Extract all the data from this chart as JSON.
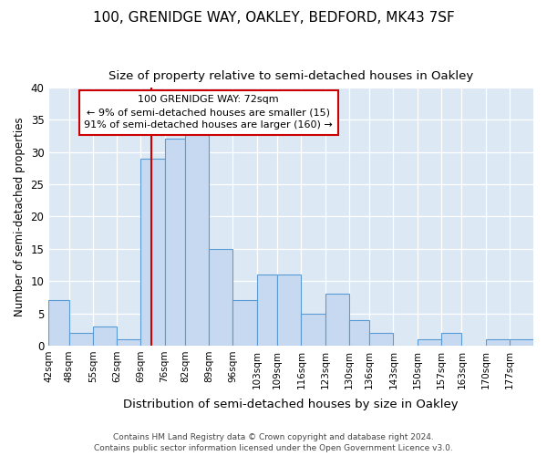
{
  "title": "100, GRENIDGE WAY, OAKLEY, BEDFORD, MK43 7SF",
  "subtitle": "Size of property relative to semi-detached houses in Oakley",
  "xlabel": "Distribution of semi-detached houses by size in Oakley",
  "ylabel": "Number of semi-detached properties",
  "footnote1": "Contains HM Land Registry data © Crown copyright and database right 2024.",
  "footnote2": "Contains public sector information licensed under the Open Government Licence v3.0.",
  "annotation_line1": "100 GRENIDGE WAY: 72sqm",
  "annotation_line2": "← 9% of semi-detached houses are smaller (15)",
  "annotation_line3": "91% of semi-detached houses are larger (160) →",
  "property_size": 72,
  "bin_starts": [
    42,
    48,
    55,
    62,
    69,
    76,
    82,
    89,
    96,
    103,
    109,
    116,
    123,
    130,
    136,
    143,
    150,
    157,
    163,
    170,
    177
  ],
  "bin_widths_val": [
    6,
    7,
    7,
    7,
    7,
    6,
    7,
    7,
    7,
    6,
    7,
    7,
    7,
    6,
    7,
    7,
    7,
    6,
    7,
    7,
    7
  ],
  "bar_heights": [
    7,
    2,
    3,
    1,
    29,
    32,
    33,
    15,
    7,
    11,
    11,
    5,
    8,
    4,
    2,
    0,
    1,
    2,
    0,
    1,
    1
  ],
  "bar_color": "#c6d9f0",
  "bar_edge_color": "#5b9bd5",
  "vline_color": "#cc0000",
  "annotation_box_edge_color": "#cc0000",
  "fig_bg_color": "#ffffff",
  "plot_bg_color": "#dce9f5",
  "grid_color": "#ffffff",
  "ylim": [
    0,
    40
  ],
  "yticks": [
    0,
    5,
    10,
    15,
    20,
    25,
    30,
    35,
    40
  ],
  "tick_labels": [
    "42sqm",
    "48sqm",
    "55sqm",
    "62sqm",
    "69sqm",
    "76sqm",
    "82sqm",
    "89sqm",
    "96sqm",
    "103sqm",
    "109sqm",
    "116sqm",
    "123sqm",
    "130sqm",
    "136sqm",
    "143sqm",
    "150sqm",
    "157sqm",
    "163sqm",
    "170sqm",
    "177sqm"
  ],
  "xlim_left": 42,
  "xlim_right": 184
}
